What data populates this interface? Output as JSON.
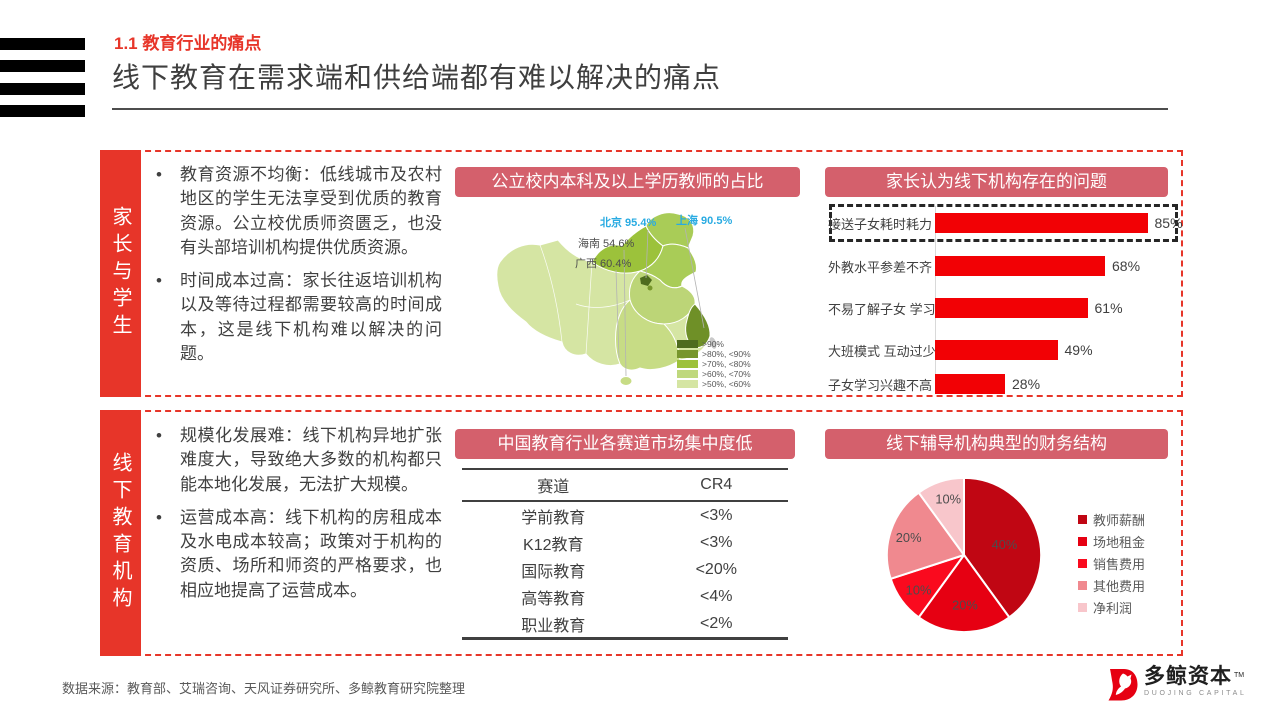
{
  "slide": {
    "kicker": "1.1 教育行业的痛点",
    "title": "线下教育在需求端和供给端都有难以解决的痛点",
    "source_note": "数据来源：教育部、艾瑞咨询、天风证券研究所、多鲸教育研究院整理"
  },
  "brand": {
    "logo_text": "多鲸资本",
    "logo_tm": "TM",
    "logo_subtext": "DUOJING CAPITAL"
  },
  "colors": {
    "accent_red": "#e73529",
    "panel_title_bg": "#d4606c",
    "bar_red": "#f20105",
    "callout_blue": "#29abe2",
    "text_dark": "#404040",
    "text_gray": "#595959"
  },
  "sections": [
    {
      "label": "家长与学生",
      "bullets": [
        "教育资源不均衡：低线城市及农村地区的学生无法享受到优质的教育资源。公立校优质师资匮乏，也没有头部培训机构提供优质资源。",
        "时间成本过高：家长往返培训机构以及等待过程都需要较高的时间成本，这是线下机构难以解决的问题。"
      ]
    },
    {
      "label": "线下教育机构",
      "bullets": [
        "规模化发展难：线下机构异地扩张难度大，导致绝大多数的机构都只能本地化发展，无法扩大规模。",
        "运营成本高：线下机构的房租成本及水电成本较高；政策对于机构的资质、场所和师资的严格要求，也相应地提高了运营成本。"
      ]
    }
  ],
  "chart_data": [
    {
      "id": "public-school-teacher-map",
      "type": "heatmap",
      "title": "公立校内本科及以上学历教师的占比",
      "unit": "%",
      "points": [
        {
          "region": "北京",
          "value": 95.4
        },
        {
          "region": "上海",
          "value": 90.5
        },
        {
          "region": "海南",
          "value": 54.6
        },
        {
          "region": "广西",
          "value": 60.4
        }
      ],
      "point_labels": [
        "北京 95.4%",
        "上海 90.5%",
        "海南 54.6%",
        "广西 60.4%"
      ],
      "legend": [
        ">90%",
        ">80%, <90%",
        ">70%, <80%",
        ">60%, <70%",
        ">50%, <60%"
      ],
      "legend_colors": [
        "#4e6b1e",
        "#77962c",
        "#9dc13c",
        "#bfd87d",
        "#d5e5a3"
      ]
    },
    {
      "id": "parent-problems-bar",
      "type": "bar",
      "orientation": "horizontal",
      "title": "家长认为线下机构存在的问题",
      "categories": [
        "接送子女耗时耗力",
        "外教水平参差不齐",
        "不易了解子女 学习进展",
        "大班模式 互动过少",
        "子女学习兴趣不高"
      ],
      "values": [
        85,
        68,
        61,
        49,
        28
      ],
      "value_labels": [
        "85%",
        "68%",
        "61%",
        "49%",
        "28%"
      ],
      "highlight_category": "接送子女耗时耗力",
      "bar_color": "#f20105",
      "xlim": [
        0,
        100
      ],
      "grid": false
    },
    {
      "id": "market-concentration-table",
      "type": "table",
      "title": "中国教育行业各赛道市场集中度低",
      "headers": [
        "赛道",
        "CR4"
      ],
      "rows": [
        [
          "学前教育",
          "<3%"
        ],
        [
          "K12教育",
          "<3%"
        ],
        [
          "国际教育",
          "<20%"
        ],
        [
          "高等教育",
          "<4%"
        ],
        [
          "职业教育",
          "<2%"
        ]
      ]
    },
    {
      "id": "finance-structure-pie",
      "type": "pie",
      "title": "线下辅导机构典型的财务结构",
      "labels": [
        "教师薪酬",
        "场地租金",
        "销售费用",
        "其他费用",
        "净利润"
      ],
      "values": [
        40,
        20,
        10,
        20,
        10
      ],
      "value_labels": [
        "40%",
        "20%",
        "10%",
        "20%",
        "10%"
      ],
      "colors": [
        "#c00613",
        "#e60012",
        "#fa0a1e",
        "#f0898f",
        "#f8c6cb"
      ],
      "legend_position": "right"
    }
  ]
}
